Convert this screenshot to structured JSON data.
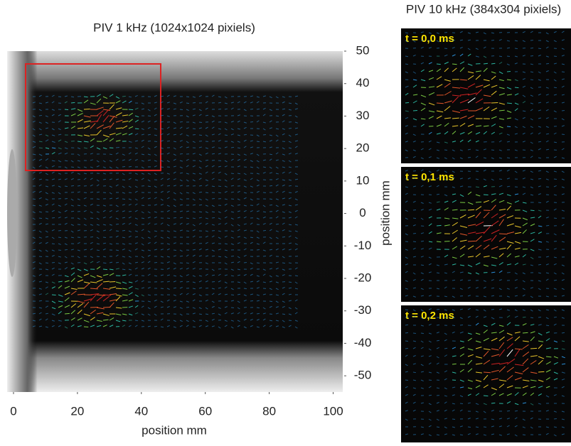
{
  "chart_data": {
    "type": "image",
    "title": "PIV 1 kHz (1024x1024 pixiels)",
    "xlabel": "position mm",
    "ylabel": "position mm",
    "xlim": [
      -2,
      103
    ],
    "xticks": [
      0,
      20,
      40,
      60,
      80,
      100
    ],
    "ylim": [
      -55,
      50
    ],
    "yticks": [
      50,
      40,
      30,
      20,
      10,
      0,
      -10,
      -20,
      -30,
      -40,
      -50
    ]
  },
  "side_panels": {
    "title": "PIV 10 kHz (384x304 pixiels)",
    "frames": [
      "t = 0,0 ms",
      "t = 0,1 ms",
      "t = 0,2 ms"
    ]
  }
}
